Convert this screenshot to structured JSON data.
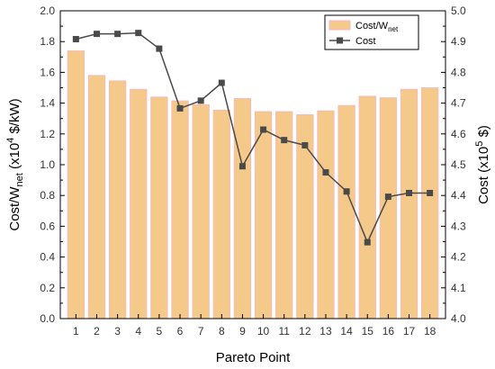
{
  "chart_data": {
    "type": "bar+line",
    "categories": [
      "1",
      "2",
      "3",
      "4",
      "5",
      "6",
      "7",
      "8",
      "9",
      "10",
      "11",
      "12",
      "13",
      "14",
      "15",
      "16",
      "17",
      "18"
    ],
    "series": [
      {
        "name_main": "Cost/W",
        "name_sub": "net",
        "type": "bar",
        "axis": "left",
        "color": "#f5c98a",
        "edge_color": "#f2b8c8",
        "values": [
          1.74,
          1.58,
          1.545,
          1.49,
          1.44,
          1.415,
          1.39,
          1.355,
          1.43,
          1.345,
          1.345,
          1.325,
          1.35,
          1.385,
          1.445,
          1.435,
          1.49,
          1.5
        ]
      },
      {
        "name": "Cost",
        "type": "line",
        "axis": "right",
        "color": "#4a4a4a",
        "values": [
          4.908,
          4.925,
          4.925,
          4.928,
          4.877,
          4.683,
          4.708,
          4.766,
          4.495,
          4.614,
          4.58,
          4.563,
          4.475,
          4.413,
          4.248,
          4.396,
          4.408,
          4.408
        ]
      }
    ],
    "xlabel": "Pareto Point",
    "ylabel_left": {
      "pre": "Cost/W",
      "sub": "net",
      "post": " (x10",
      "sup": "4",
      "tail": " $/kW)"
    },
    "ylabel_right": {
      "pre": "Cost (x10",
      "sup": "5",
      "tail": " $)"
    },
    "ylim_left": [
      0,
      2.0
    ],
    "ylim_right": [
      4.0,
      5.0
    ],
    "yticks_left": [
      "0.0",
      "0.2",
      "0.4",
      "0.6",
      "0.8",
      "1.0",
      "1.2",
      "1.4",
      "1.6",
      "1.8",
      "2.0"
    ],
    "yticks_right": [
      "4.0",
      "4.1",
      "4.2",
      "4.3",
      "4.4",
      "4.5",
      "4.6",
      "4.7",
      "4.8",
      "4.9",
      "5.0"
    ],
    "grid": false,
    "legend_position": "top-right"
  }
}
